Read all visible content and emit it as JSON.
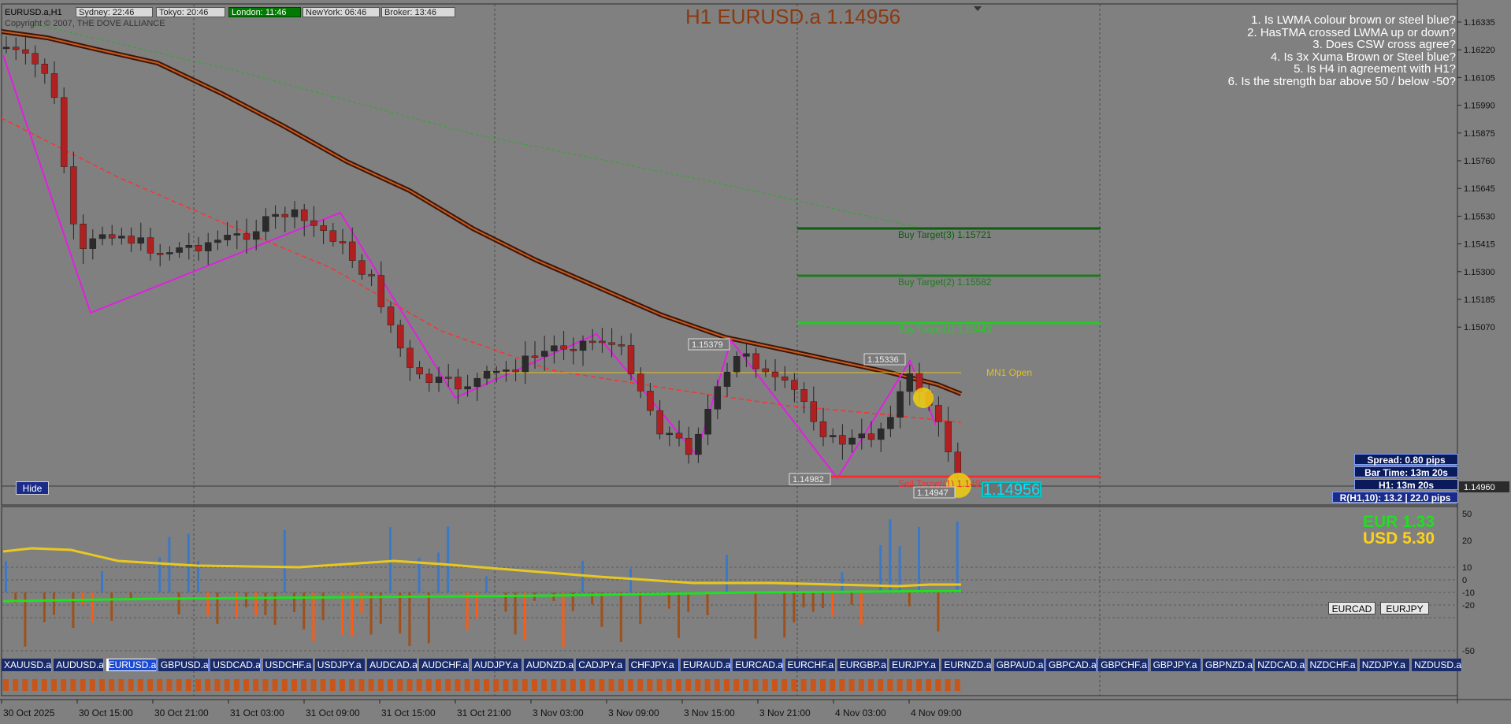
{
  "symbol_label": "EURUSD.a,H1",
  "copyright": "Copyright © 2007, THE DOVE ALLIANCE",
  "sessions": [
    {
      "label": "Sydney: 22:46",
      "open": false
    },
    {
      "label": "Tokyo: 20:46",
      "open": false
    },
    {
      "label": "London: 11:46",
      "open": true
    },
    {
      "label": "NewYork: 06:46",
      "open": false
    },
    {
      "label": "Broker: 13:46",
      "open": false
    }
  ],
  "chart_title": "H1 EURUSD.a 1.14956",
  "checklist": [
    "1. Is LWMA colour brown or steel blue?",
    "2. HasTMA crossed LWMA up or down?",
    "3. Does CSW cross agree?",
    "4. Is 3x Xuma Brown or Steel blue?",
    "5. Is H4 in agreement with H1?",
    "6. Is the strength bar above 50 / below -50?"
  ],
  "price_axis": [
    "1.16335",
    "1.16220",
    "1.16105",
    "1.15990",
    "1.15875",
    "1.15760",
    "1.15645",
    "1.15530",
    "1.15415",
    "1.15300",
    "1.15185",
    "1.15070"
  ],
  "current_price_tag": "1.14960",
  "time_axis": [
    "30 Oct 2025",
    "30 Oct 15:00",
    "30 Oct 21:00",
    "31 Oct 03:00",
    "31 Oct 09:00",
    "31 Oct 15:00",
    "31 Oct 21:00",
    "3 Nov 03:00",
    "3 Nov 09:00",
    "3 Nov 15:00",
    "3 Nov 21:00",
    "4 Nov 03:00",
    "4 Nov 09:00"
  ],
  "targets": [
    {
      "label": "Buy Target(3) 1.15721",
      "color": "#0e5c0e"
    },
    {
      "label": "Buy Target(2) 1.15582",
      "color": "#1f7a1f"
    },
    {
      "label": "Buy Target(1) 1.15443",
      "color": "#22cc22"
    },
    {
      "label": "Sell Target(1) 1.14951",
      "color": "#ff2a2a"
    }
  ],
  "mn1_label": "MN1 Open",
  "zigzag_labels": [
    "1.15379",
    "1.15336",
    "1.14982",
    "1.14947"
  ],
  "live_price": "1.14956",
  "info_boxes": {
    "spread": "Spread: 0.80 pips",
    "bar_time": "Bar Time: 13m 20s",
    "h1": "H1:  13m 20s",
    "range": "R(H1,10): 13.2  |  22.0 pips"
  },
  "hide_button": "Hide",
  "currency_strength": {
    "eur": "EUR 1.33",
    "usd": "USD 5.30",
    "eur_color": "#22dd22",
    "usd_color": "#ffd21a"
  },
  "indicator_axis": [
    "50",
    "20",
    "10",
    "0",
    "-10",
    "-20",
    "-50"
  ],
  "pair_buttons": [
    "EURCAD",
    "EURJPY"
  ],
  "symbols": [
    "XAUUSD.a",
    "AUDUSD.a",
    "EURUSD.a",
    "GBPUSD.a",
    "USDCAD.a",
    "USDCHF.a",
    "USDJPY.a",
    "AUDCAD.a",
    "AUDCHF.a",
    "AUDJPY.a",
    "AUDNZD.a",
    "CADJPY.a",
    "CHFJPY.a",
    "EURAUD.a",
    "EURCAD.a",
    "EURCHF.a",
    "EURGBP.a",
    "EURJPY.a",
    "EURNZD.a",
    "GBPAUD.a",
    "GBPCAD.a",
    "GBPCHF.a",
    "GBPJPY.a",
    "GBPNZD.a",
    "NZDCAD.a",
    "NZDCHF.a",
    "NZDJPY.a",
    "NZDUSD.a"
  ],
  "active_symbol": "EURUSD.a",
  "colors": {
    "background": "#808080",
    "bull_candle": "#2b2b2b",
    "bear_candle": "#b02020",
    "zigzag": "#e020e0",
    "lwma": "#8b3a10",
    "tma": "#ff3030",
    "blue_bars": "#3a78c8",
    "brown_bars": "#a0501a",
    "orange_bars": "#ff5a10"
  }
}
